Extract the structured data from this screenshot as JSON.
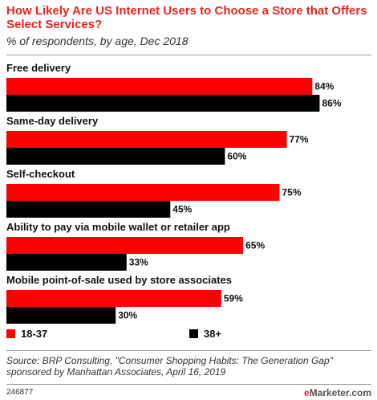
{
  "header": {
    "title": "How Likely Are US Internet Users to Choose a Store that Offers Select Services?",
    "subtitle": "% of respondents, by age, Dec 2018"
  },
  "chart_data": {
    "type": "bar",
    "orientation": "horizontal",
    "categories": [
      "Free delivery",
      "Same-day delivery",
      "Self-checkout",
      "Ability to pay via mobile wallet or retailer app",
      "Mobile point-of-sale used by store associates"
    ],
    "series": [
      {
        "name": "18-37",
        "values": [
          84,
          77,
          75,
          65,
          59
        ],
        "color": "#ff0000"
      },
      {
        "name": "38+",
        "values": [
          86,
          60,
          45,
          33,
          30
        ],
        "color": "#000000"
      }
    ],
    "value_suffix": "%",
    "xlim": [
      0,
      100
    ],
    "grid": false,
    "legend_position": "bottom"
  },
  "legend": [
    {
      "label": "18-37",
      "color": "#ff0000"
    },
    {
      "label": "38+",
      "color": "#000000"
    }
  ],
  "source": "Source: BRP Consulting, \"Consumer Shopping Habits: The Generation Gap\" sponsored by Manhattan Associates, April 16, 2019",
  "footer": {
    "id": "246877",
    "logo_e": "e",
    "logo_rest": "Marketer.com"
  }
}
